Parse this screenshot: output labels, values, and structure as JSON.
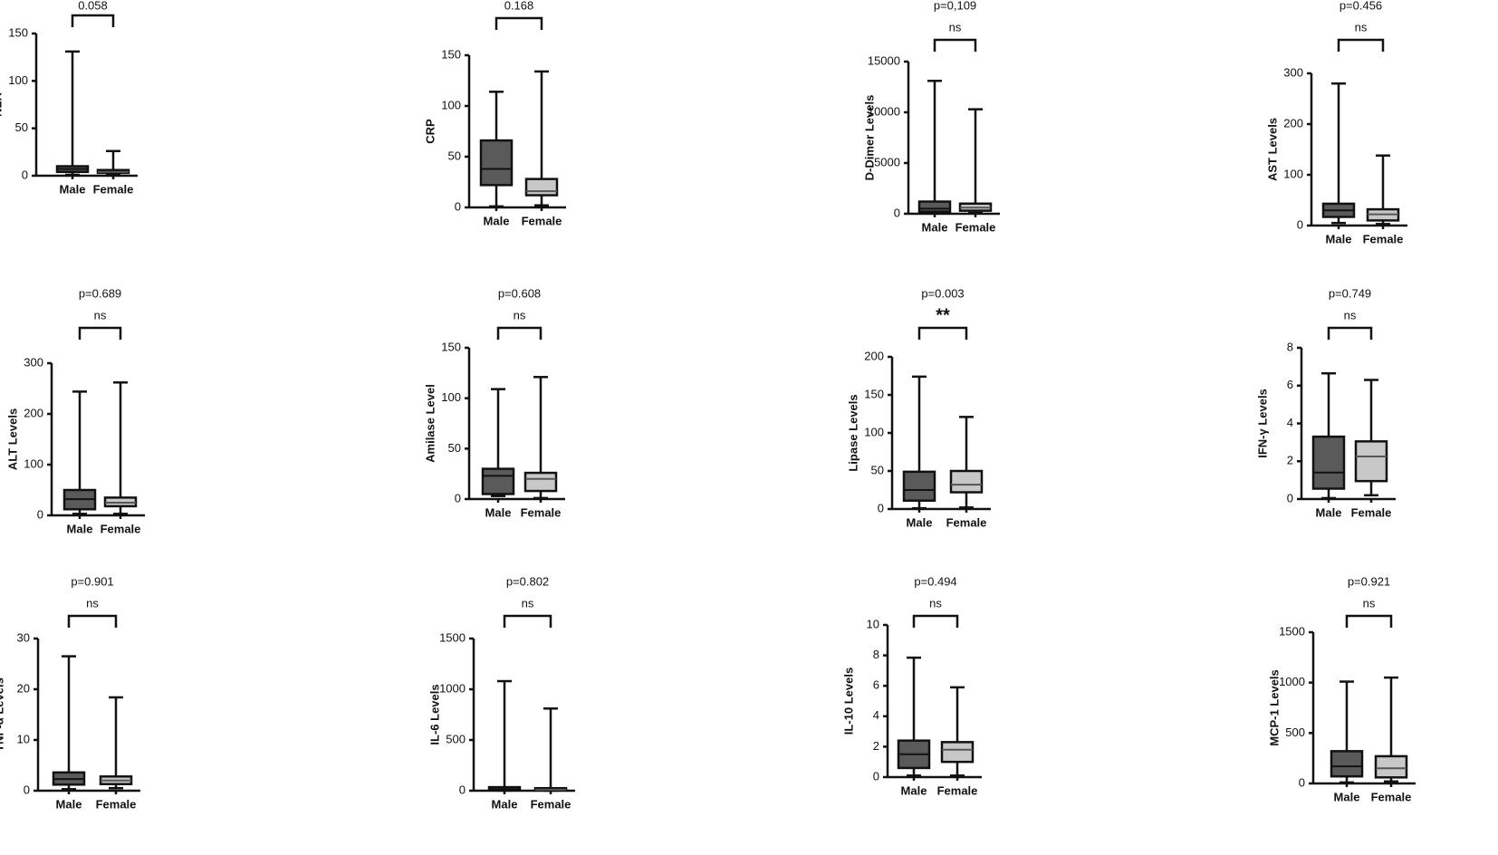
{
  "chart_data": [
    {
      "type": "box",
      "title": "0.058",
      "y_label": "NLR",
      "categories": [
        "Male",
        "Female"
      ],
      "colors": [
        "#5a5a5a",
        "#c8c8c8"
      ],
      "ylim": [
        0,
        150
      ],
      "yticks": [
        0,
        50,
        100,
        150
      ],
      "min": [
        1,
        1
      ],
      "q1": [
        4,
        3
      ],
      "median": [
        7,
        4
      ],
      "q3": [
        10,
        6
      ],
      "max": [
        131,
        26
      ]
    },
    {
      "type": "box",
      "title": "0.168",
      "y_label": "CRP",
      "categories": [
        "Male",
        "Female"
      ],
      "colors": [
        "#5a5a5a",
        "#c8c8c8"
      ],
      "ylim": [
        0,
        150
      ],
      "yticks": [
        0,
        50,
        100,
        150
      ],
      "min": [
        1,
        2
      ],
      "q1": [
        22,
        12
      ],
      "median": [
        38,
        16
      ],
      "q3": [
        66,
        28
      ],
      "max": [
        114,
        134
      ]
    },
    {
      "type": "box",
      "title": "p=0,109",
      "annotation": "ns",
      "y_label": "D-Dimer Levels",
      "categories": [
        "Male",
        "Female"
      ],
      "colors": [
        "#5a5a5a",
        "#c8c8c8"
      ],
      "ylim": [
        0,
        15000
      ],
      "yticks": [
        0,
        5000,
        10000,
        15000
      ],
      "min": [
        50,
        100
      ],
      "q1": [
        200,
        300
      ],
      "median": [
        500,
        600
      ],
      "q3": [
        1200,
        1000
      ],
      "max": [
        13100,
        10300
      ]
    },
    {
      "type": "box",
      "title": "p=0.456",
      "annotation": "ns",
      "y_label": "AST Levels",
      "categories": [
        "Male",
        "Female"
      ],
      "colors": [
        "#5a5a5a",
        "#c8c8c8"
      ],
      "ylim": [
        0,
        300
      ],
      "yticks": [
        0,
        100,
        200,
        300
      ],
      "min": [
        5,
        3
      ],
      "q1": [
        17,
        10
      ],
      "median": [
        30,
        22
      ],
      "q3": [
        43,
        32
      ],
      "max": [
        280,
        138
      ]
    },
    {
      "type": "box",
      "title": "p=0.689",
      "annotation": "ns",
      "y_label": "ALT Levels",
      "categories": [
        "Male",
        "Female"
      ],
      "colors": [
        "#5a5a5a",
        "#c8c8c8"
      ],
      "ylim": [
        0,
        300
      ],
      "yticks": [
        0,
        100,
        200,
        300
      ],
      "min": [
        3,
        3
      ],
      "q1": [
        12,
        18
      ],
      "median": [
        32,
        25
      ],
      "q3": [
        50,
        35
      ],
      "max": [
        244,
        262
      ]
    },
    {
      "type": "box",
      "title": "p=0.608",
      "annotation": "ns",
      "y_label": "Amilase Level",
      "categories": [
        "Male",
        "Female"
      ],
      "colors": [
        "#5a5a5a",
        "#c8c8c8"
      ],
      "ylim": [
        0,
        150
      ],
      "yticks": [
        0,
        50,
        100,
        150
      ],
      "min": [
        3,
        1
      ],
      "q1": [
        5,
        8
      ],
      "median": [
        23,
        20
      ],
      "q3": [
        30,
        26
      ],
      "max": [
        109,
        121
      ]
    },
    {
      "type": "box",
      "title": "p=0.003",
      "annotation": "**",
      "y_label": "Lipase Levels",
      "categories": [
        "Male",
        "Female"
      ],
      "colors": [
        "#5a5a5a",
        "#c8c8c8"
      ],
      "ylim": [
        0,
        200
      ],
      "yticks": [
        0,
        50,
        100,
        150,
        200
      ],
      "min": [
        1,
        2
      ],
      "q1": [
        11,
        22
      ],
      "median": [
        25,
        32
      ],
      "q3": [
        49,
        50
      ],
      "max": [
        174,
        121
      ]
    },
    {
      "type": "box",
      "title": "p=0.749",
      "annotation": "ns",
      "y_label": "IFN-γ Levels",
      "categories": [
        "Male",
        "Female"
      ],
      "colors": [
        "#5a5a5a",
        "#c8c8c8"
      ],
      "ylim": [
        0,
        8
      ],
      "yticks": [
        0,
        2,
        4,
        6,
        8
      ],
      "min": [
        0.05,
        0.2
      ],
      "q1": [
        0.55,
        0.95
      ],
      "median": [
        1.4,
        2.25
      ],
      "q3": [
        3.3,
        3.05
      ],
      "max": [
        6.65,
        6.3
      ]
    },
    {
      "type": "box",
      "title": "p=0.901",
      "annotation": "ns",
      "y_label": "TNF-α Levels",
      "categories": [
        "Male",
        "Female"
      ],
      "colors": [
        "#5a5a5a",
        "#c8c8c8"
      ],
      "ylim": [
        0,
        30
      ],
      "yticks": [
        0,
        10,
        20,
        30
      ],
      "min": [
        0.3,
        0.5
      ],
      "q1": [
        1.2,
        1.3
      ],
      "median": [
        2.3,
        2
      ],
      "q3": [
        3.6,
        2.8
      ],
      "max": [
        26.5,
        18.4
      ]
    },
    {
      "type": "box",
      "title": "p=0.802",
      "annotation": "ns",
      "y_label": "IL-6 Levels",
      "categories": [
        "Male",
        "Female"
      ],
      "colors": [
        "#5a5a5a",
        "#c8c8c8"
      ],
      "ylim": [
        0,
        1500
      ],
      "yticks": [
        0,
        500,
        1000,
        1500
      ],
      "min": [
        1,
        1
      ],
      "q1": [
        5,
        5
      ],
      "median": [
        15,
        10
      ],
      "q3": [
        35,
        25
      ],
      "max": [
        1080,
        810
      ]
    },
    {
      "type": "box",
      "title": "p=0.494",
      "annotation": "ns",
      "y_label": "IL-10 Levels",
      "categories": [
        "Male",
        "Female"
      ],
      "colors": [
        "#5a5a5a",
        "#c8c8c8"
      ],
      "ylim": [
        0,
        10
      ],
      "yticks": [
        0,
        2,
        4,
        6,
        8,
        10
      ],
      "min": [
        0.1,
        0.1
      ],
      "q1": [
        0.6,
        1
      ],
      "median": [
        1.5,
        1.8
      ],
      "q3": [
        2.4,
        2.3
      ],
      "max": [
        7.85,
        5.9
      ]
    },
    {
      "type": "box",
      "title": "p=0.921",
      "annotation": "ns",
      "y_label": "MCP-1 Levels",
      "categories": [
        "Male",
        "Female"
      ],
      "colors": [
        "#5a5a5a",
        "#c8c8c8"
      ],
      "ylim": [
        0,
        1500
      ],
      "yticks": [
        0,
        500,
        1000,
        1500
      ],
      "min": [
        10,
        20
      ],
      "q1": [
        70,
        60
      ],
      "median": [
        170,
        150
      ],
      "q3": [
        320,
        270
      ],
      "max": [
        1010,
        1050
      ]
    }
  ]
}
